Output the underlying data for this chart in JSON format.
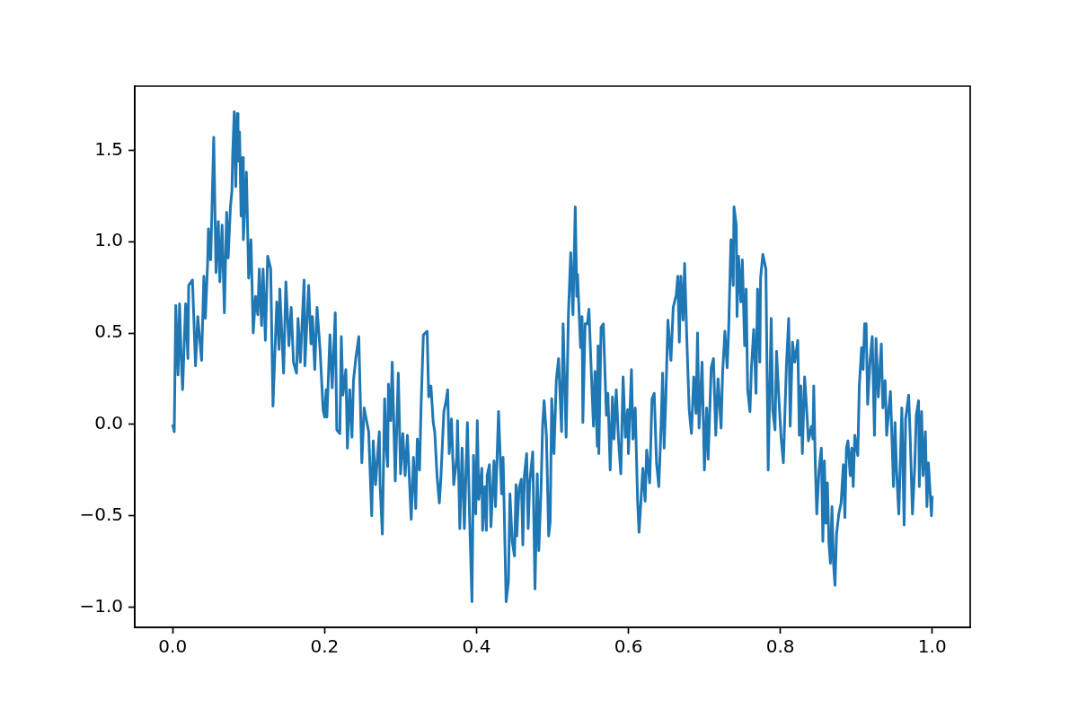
{
  "chart_data": {
    "type": "line",
    "grid": false,
    "legend": false,
    "marker": "none",
    "line_style": "solid",
    "xlim": [
      -0.05,
      1.05
    ],
    "ylim": [
      -1.11,
      1.85
    ],
    "xticks": [
      {
        "value": 0,
        "label": "0.0"
      },
      {
        "value": 0.2,
        "label": "0.2"
      },
      {
        "value": 0.4,
        "label": "0.4"
      },
      {
        "value": 0.6,
        "label": "0.6"
      },
      {
        "value": 0.8,
        "label": "0.8"
      },
      {
        "value": 1,
        "label": "1.0"
      }
    ],
    "yticks": [
      {
        "value": -1,
        "label": "−1.0"
      },
      {
        "value": -0.5,
        "label": "−0.5"
      },
      {
        "value": 0,
        "label": "0.0"
      },
      {
        "value": 0.5,
        "label": "0.5"
      },
      {
        "value": 1,
        "label": "1.0"
      },
      {
        "value": 1.5,
        "label": "1.5"
      }
    ],
    "x": [
      0.0,
      0.002,
      0.004,
      0.007,
      0.009,
      0.011,
      0.013,
      0.017,
      0.02,
      0.021,
      0.026,
      0.03,
      0.033,
      0.038,
      0.041,
      0.043,
      0.046,
      0.047,
      0.05,
      0.054,
      0.057,
      0.06,
      0.062,
      0.065,
      0.068,
      0.071,
      0.073,
      0.076,
      0.078,
      0.079,
      0.081,
      0.083,
      0.085,
      0.086,
      0.088,
      0.09,
      0.092,
      0.093,
      0.097,
      0.1,
      0.103,
      0.106,
      0.109,
      0.112,
      0.114,
      0.117,
      0.119,
      0.122,
      0.125,
      0.129,
      0.132,
      0.137,
      0.14,
      0.141,
      0.146,
      0.149,
      0.153,
      0.156,
      0.159,
      0.163,
      0.165,
      0.168,
      0.173,
      0.174,
      0.179,
      0.182,
      0.184,
      0.187,
      0.19,
      0.194,
      0.198,
      0.2,
      0.202,
      0.203,
      0.207,
      0.21,
      0.214,
      0.216,
      0.22,
      0.222,
      0.224,
      0.228,
      0.23,
      0.233,
      0.236,
      0.238,
      0.241,
      0.245,
      0.249,
      0.252,
      0.258,
      0.262,
      0.264,
      0.267,
      0.272,
      0.273,
      0.276,
      0.279,
      0.281,
      0.283,
      0.284,
      0.287,
      0.289,
      0.293,
      0.297,
      0.3,
      0.303,
      0.306,
      0.309,
      0.314,
      0.317,
      0.32,
      0.322,
      0.325,
      0.327,
      0.33,
      0.335,
      0.337,
      0.34,
      0.343,
      0.345,
      0.348,
      0.351,
      0.353,
      0.357,
      0.36,
      0.362,
      0.364,
      0.367,
      0.37,
      0.374,
      0.375,
      0.378,
      0.381,
      0.384,
      0.388,
      0.391,
      0.394,
      0.396,
      0.399,
      0.401,
      0.403,
      0.407,
      0.408,
      0.411,
      0.413,
      0.414,
      0.417,
      0.419,
      0.423,
      0.425,
      0.429,
      0.433,
      0.435,
      0.439,
      0.442,
      0.444,
      0.447,
      0.45,
      0.452,
      0.453,
      0.456,
      0.459,
      0.461,
      0.463,
      0.466,
      0.468,
      0.47,
      0.474,
      0.477,
      0.48,
      0.482,
      0.485,
      0.487,
      0.489,
      0.492,
      0.495,
      0.497,
      0.499,
      0.502,
      0.505,
      0.508,
      0.512,
      0.514,
      0.518,
      0.521,
      0.524,
      0.527,
      0.53,
      0.532,
      0.533,
      0.537,
      0.539,
      0.54,
      0.543,
      0.546,
      0.548,
      0.552,
      0.554,
      0.556,
      0.559,
      0.56,
      0.561,
      0.564,
      0.567,
      0.571,
      0.573,
      0.576,
      0.579,
      0.581,
      0.584,
      0.587,
      0.59,
      0.593,
      0.596,
      0.599,
      0.6,
      0.604,
      0.606,
      0.609,
      0.612,
      0.614,
      0.617,
      0.619,
      0.622,
      0.624,
      0.628,
      0.631,
      0.634,
      0.637,
      0.64,
      0.643,
      0.645,
      0.647,
      0.649,
      0.652,
      0.656,
      0.659,
      0.663,
      0.665,
      0.667,
      0.669,
      0.672,
      0.674,
      0.677,
      0.68,
      0.683,
      0.686,
      0.689,
      0.691,
      0.693,
      0.697,
      0.7,
      0.703,
      0.705,
      0.709,
      0.712,
      0.715,
      0.718,
      0.722,
      0.724,
      0.727,
      0.73,
      0.732,
      0.735,
      0.738,
      0.739,
      0.742,
      0.743,
      0.745,
      0.748,
      0.75,
      0.753,
      0.755,
      0.757,
      0.76,
      0.762,
      0.765,
      0.768,
      0.77,
      0.773,
      0.774,
      0.777,
      0.781,
      0.784,
      0.788,
      0.79,
      0.793,
      0.795,
      0.798,
      0.801,
      0.804,
      0.808,
      0.811,
      0.813,
      0.816,
      0.819,
      0.823,
      0.825,
      0.827,
      0.829,
      0.832,
      0.835,
      0.837,
      0.841,
      0.843,
      0.844,
      0.846,
      0.848,
      0.851,
      0.854,
      0.856,
      0.858,
      0.86,
      0.862,
      0.864,
      0.866,
      0.868,
      0.87,
      0.872,
      0.874,
      0.877,
      0.88,
      0.883,
      0.885,
      0.887,
      0.889,
      0.892,
      0.894,
      0.896,
      0.898,
      0.902,
      0.904,
      0.907,
      0.909,
      0.911,
      0.913,
      0.915,
      0.918,
      0.921,
      0.924,
      0.926,
      0.929,
      0.933,
      0.935,
      0.938,
      0.94,
      0.943,
      0.945,
      0.949,
      0.951,
      0.953,
      0.956,
      0.96,
      0.963,
      0.965,
      0.969,
      0.971,
      0.974,
      0.977,
      0.979,
      0.982,
      0.983,
      0.986,
      0.988,
      0.991,
      0.993,
      0.995,
      0.999,
      1.0
    ],
    "series": [
      {
        "color": "#1f77b4",
        "values": [
          0.0,
          -0.04,
          0.65,
          0.27,
          0.66,
          0.38,
          0.19,
          0.66,
          0.36,
          0.76,
          0.79,
          0.32,
          0.59,
          0.35,
          0.81,
          0.58,
          0.89,
          1.07,
          0.9,
          1.57,
          0.83,
          1.11,
          0.78,
          1.09,
          0.61,
          1.16,
          0.91,
          1.19,
          1.28,
          1.48,
          1.71,
          1.3,
          1.7,
          1.44,
          1.6,
          1.14,
          1.46,
          1.01,
          1.38,
          0.8,
          1.01,
          0.5,
          0.7,
          0.6,
          0.85,
          0.54,
          0.85,
          0.46,
          0.92,
          0.85,
          0.1,
          0.67,
          0.41,
          0.74,
          0.28,
          0.78,
          0.43,
          0.64,
          0.34,
          0.28,
          0.58,
          0.34,
          0.79,
          0.32,
          0.76,
          0.44,
          0.59,
          0.3,
          0.64,
          0.41,
          0.08,
          0.04,
          0.19,
          0.04,
          0.49,
          0.2,
          0.61,
          -0.03,
          -0.05,
          0.48,
          0.16,
          0.3,
          -0.13,
          0.19,
          -0.07,
          0.24,
          0.36,
          0.48,
          -0.21,
          0.09,
          -0.04,
          -0.5,
          -0.09,
          -0.33,
          -0.04,
          -0.33,
          -0.6,
          0.14,
          -0.11,
          -0.23,
          0.22,
          0.02,
          0.34,
          -0.31,
          0.28,
          -0.27,
          -0.05,
          -0.28,
          -0.06,
          -0.52,
          -0.18,
          -0.46,
          -0.08,
          -0.25,
          0.1,
          0.49,
          0.51,
          0.15,
          0.21,
          0.01,
          -0.04,
          -0.28,
          -0.43,
          -0.3,
          0.07,
          0.13,
          0.19,
          -0.16,
          0.03,
          -0.33,
          -0.18,
          0.02,
          -0.57,
          -0.13,
          -0.57,
          0.01,
          -0.53,
          -0.97,
          -0.17,
          -0.49,
          0.02,
          -0.41,
          -0.24,
          -0.58,
          -0.34,
          -0.58,
          -0.28,
          -0.22,
          -0.56,
          -0.2,
          -0.45,
          0.07,
          -0.38,
          -0.18,
          -0.97,
          -0.86,
          -0.38,
          -0.64,
          -0.72,
          -0.33,
          -0.61,
          -0.35,
          -0.3,
          -0.66,
          -0.28,
          -0.16,
          -0.57,
          -0.32,
          -0.15,
          -0.9,
          -0.27,
          -0.69,
          -0.35,
          -0.01,
          0.13,
          -0.06,
          -0.61,
          -0.53,
          0.14,
          -0.16,
          0.24,
          0.36,
          -0.04,
          0.55,
          -0.07,
          0.6,
          0.94,
          0.6,
          1.19,
          0.7,
          0.82,
          0.42,
          0.59,
          0.01,
          0.55,
          0.55,
          0.63,
          0.19,
          -0.01,
          0.29,
          -0.12,
          0.43,
          -0.16,
          0.53,
          0.55,
          0.05,
          0.17,
          -0.25,
          0.15,
          -0.08,
          0.19,
          -0.09,
          -0.27,
          0.26,
          -0.07,
          0.08,
          -0.16,
          0.3,
          -0.08,
          0.09,
          -0.41,
          -0.59,
          -0.38,
          -0.24,
          -0.42,
          -0.14,
          -0.32,
          0.14,
          0.17,
          -0.21,
          -0.34,
          -0.01,
          0.28,
          -0.13,
          0.11,
          0.57,
          0.35,
          0.64,
          0.71,
          0.81,
          0.45,
          0.81,
          0.57,
          0.88,
          0.45,
          0.08,
          -0.05,
          0.26,
          0.06,
          0.5,
          -0.02,
          0.34,
          -0.25,
          0.09,
          -0.19,
          0.31,
          0.36,
          -0.06,
          0.25,
          -0.02,
          0.28,
          0.51,
          0.31,
          0.52,
          1.01,
          0.76,
          1.19,
          1.09,
          0.59,
          0.92,
          0.67,
          0.9,
          0.43,
          0.74,
          0.19,
          0.07,
          0.31,
          0.52,
          0.17,
          0.74,
          0.34,
          0.8,
          0.93,
          0.85,
          -0.25,
          0.58,
          0.08,
          -0.03,
          0.4,
          0.15,
          -0.07,
          -0.21,
          0.32,
          0.58,
          -0.01,
          0.45,
          0.34,
          0.46,
          -0.06,
          0.21,
          -0.16,
          0.26,
          0.06,
          -0.09,
          -0.01,
          -0.08,
          0.21,
          -0.21,
          -0.49,
          -0.25,
          -0.13,
          -0.64,
          -0.2,
          -0.54,
          -0.32,
          -0.65,
          -0.76,
          -0.45,
          -0.76,
          -0.88,
          -0.6,
          -0.49,
          -0.43,
          -0.22,
          -0.51,
          -0.13,
          -0.09,
          -0.28,
          -0.13,
          -0.34,
          -0.06,
          -0.17,
          0.21,
          0.42,
          0.3,
          0.55,
          0.55,
          0.11,
          0.34,
          0.48,
          -0.06,
          0.47,
          0.15,
          0.44,
          0.09,
          0.24,
          -0.06,
          0.09,
          0.18,
          -0.34,
          0.01,
          -0.25,
          -0.49,
          0.09,
          -0.55,
          0.03,
          0.16,
          -0.07,
          -0.49,
          -0.23,
          0.05,
          0.13,
          -0.34,
          0.07,
          -0.28,
          -0.04,
          -0.45,
          -0.21,
          -0.5,
          -0.39
        ]
      }
    ]
  }
}
